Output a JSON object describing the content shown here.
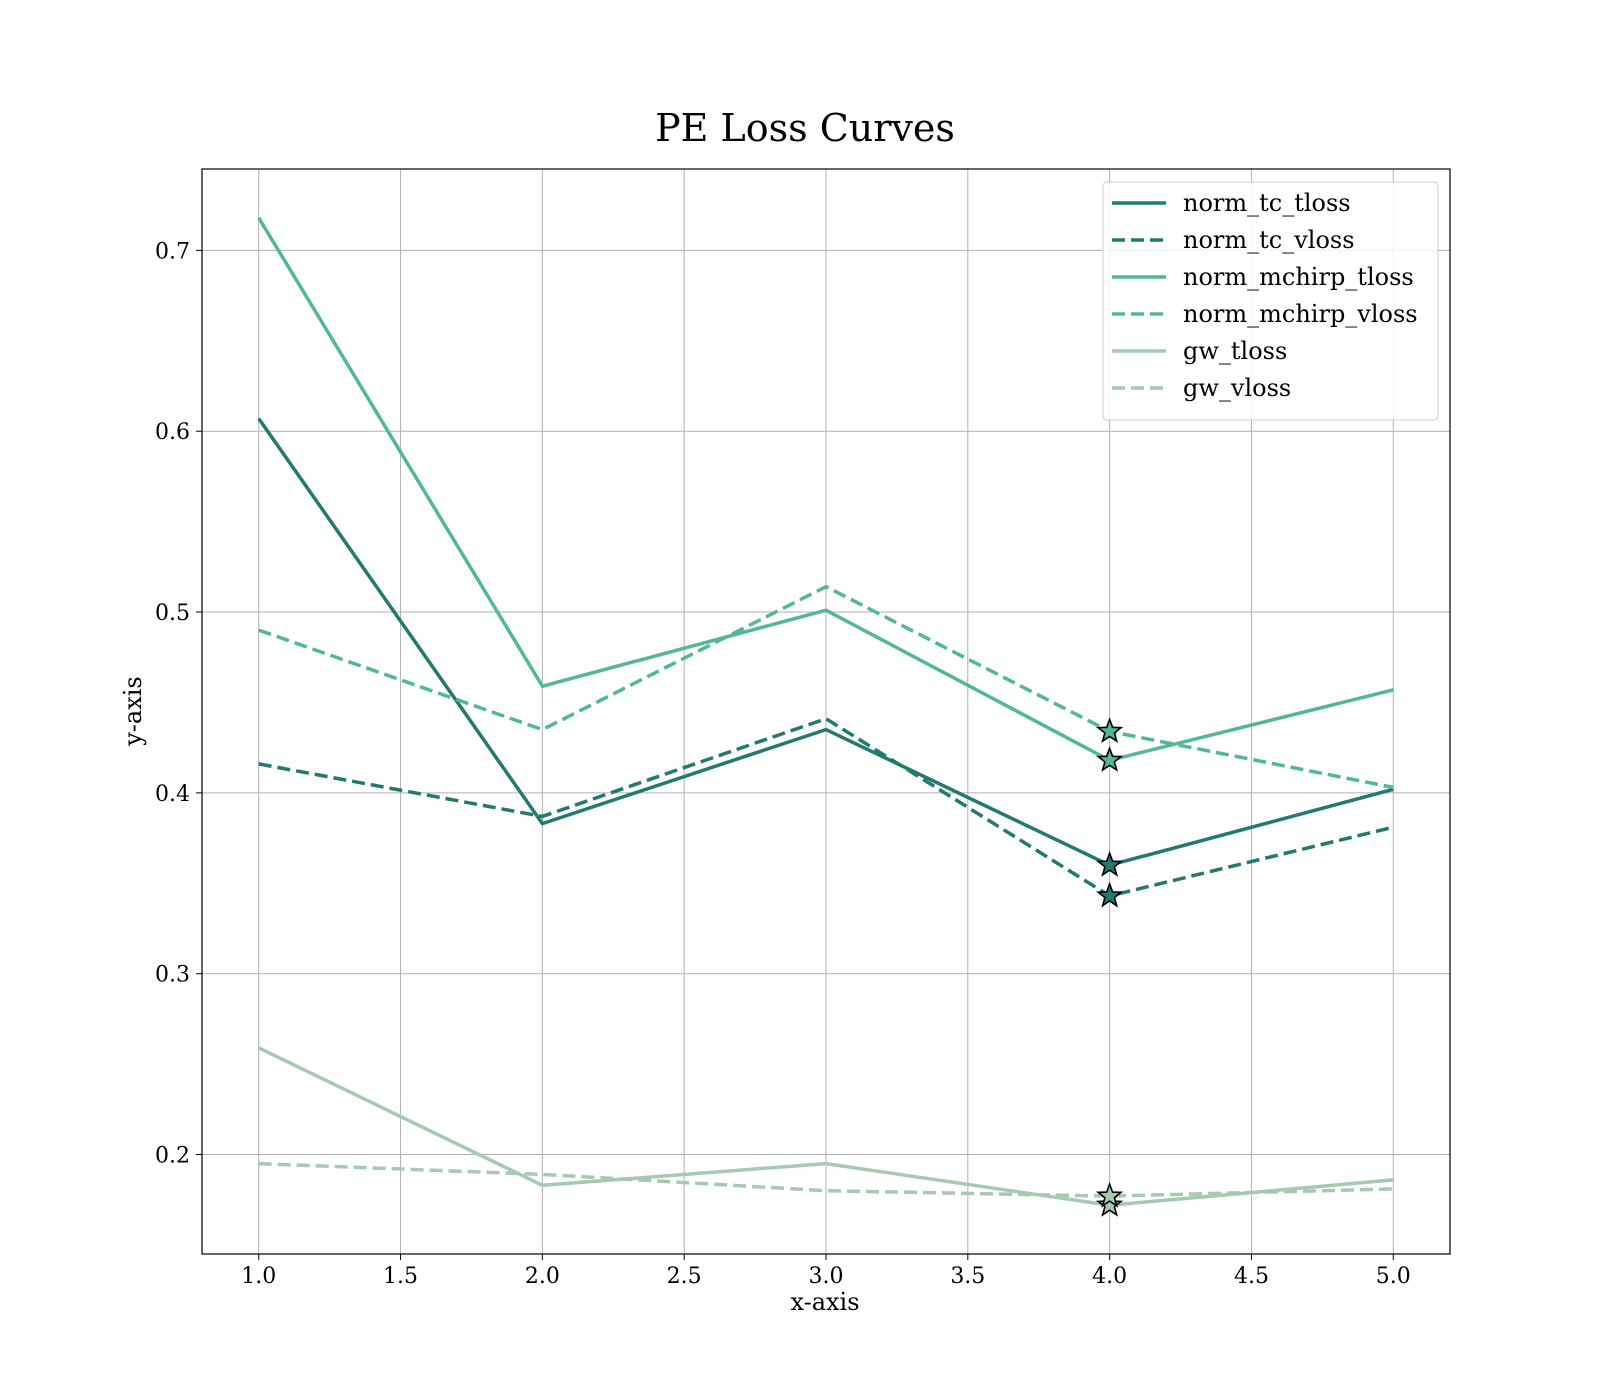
{
  "chart_data": {
    "type": "line",
    "title": "PE Loss Curves",
    "xlabel": "x-axis",
    "ylabel": "y-axis",
    "xlim": [
      0.8,
      5.2
    ],
    "ylim": [
      0.145,
      0.745
    ],
    "xticks": [
      "1.0",
      "1.5",
      "2.0",
      "2.5",
      "3.0",
      "3.5",
      "4.0",
      "4.5",
      "5.0"
    ],
    "yticks": [
      "0.2",
      "0.3",
      "0.4",
      "0.5",
      "0.6",
      "0.7"
    ],
    "grid": true,
    "legend_position": "top-right",
    "x": [
      1,
      2,
      3,
      4,
      5
    ],
    "series": [
      {
        "name": "norm_tc_tloss",
        "values": [
          0.607,
          0.383,
          0.435,
          0.36,
          0.402
        ],
        "color": "#217a6c",
        "style": "solid"
      },
      {
        "name": "norm_tc_vloss",
        "values": [
          0.416,
          0.387,
          0.441,
          0.343,
          0.381
        ],
        "color": "#217a6c",
        "style": "dashed"
      },
      {
        "name": "norm_mchirp_tloss",
        "values": [
          0.718,
          0.459,
          0.501,
          0.418,
          0.457
        ],
        "color": "#52b891",
        "style": "solid"
      },
      {
        "name": "norm_mchirp_vloss",
        "values": [
          0.49,
          0.435,
          0.514,
          0.434,
          0.403
        ],
        "color": "#52b891",
        "style": "dashed"
      },
      {
        "name": "gw_tloss",
        "values": [
          0.259,
          0.183,
          0.195,
          0.172,
          0.186
        ],
        "color": "#a6c9b2",
        "style": "solid"
      },
      {
        "name": "gw_vloss",
        "values": [
          0.195,
          0.189,
          0.18,
          0.177,
          0.181
        ],
        "color": "#a6c9b2",
        "style": "dashed"
      }
    ],
    "markers": [
      {
        "series": "norm_tc_tloss",
        "x": 4,
        "y": 0.36,
        "symbol": "star"
      },
      {
        "series": "norm_tc_vloss",
        "x": 4,
        "y": 0.343,
        "symbol": "star"
      },
      {
        "series": "norm_mchirp_tloss",
        "x": 4,
        "y": 0.418,
        "symbol": "star"
      },
      {
        "series": "norm_mchirp_vloss",
        "x": 4,
        "y": 0.434,
        "symbol": "star"
      },
      {
        "series": "gw_tloss",
        "x": 4,
        "y": 0.172,
        "symbol": "star"
      },
      {
        "series": "gw_vloss",
        "x": 4,
        "y": 0.177,
        "symbol": "star"
      }
    ]
  }
}
